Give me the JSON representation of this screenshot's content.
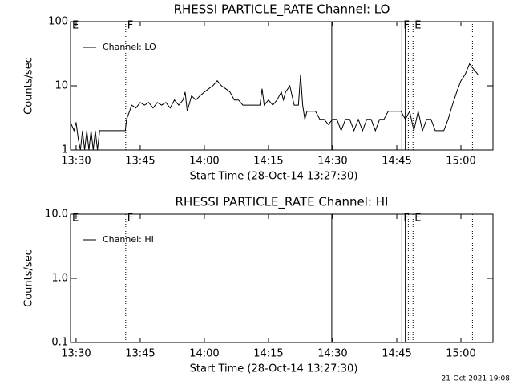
{
  "chart_data": [
    {
      "type": "line",
      "title": "RHESSI PARTICLE_RATE Channel: LO",
      "xlabel": "Start Time (28-Oct-14 13:27:30)",
      "ylabel": "Counts/sec",
      "log_y": true,
      "xlim": [
        28.7,
        127.5
      ],
      "ylim": [
        1,
        100
      ],
      "xticks": [
        {
          "value": 30,
          "label": "13:30"
        },
        {
          "value": 45,
          "label": "13:45"
        },
        {
          "value": 60,
          "label": "14:00"
        },
        {
          "value": 75,
          "label": "14:15"
        },
        {
          "value": 90,
          "label": "14:30"
        },
        {
          "value": 105,
          "label": "14:45"
        },
        {
          "value": 120,
          "label": "15:00"
        }
      ],
      "yticks": [
        1,
        10,
        100
      ],
      "x": [
        28.7,
        29.5,
        30,
        30.5,
        31,
        31.5,
        32,
        32.5,
        33,
        33.5,
        34,
        34.5,
        35,
        35.5,
        36,
        40,
        41.5,
        41.8,
        42.5,
        43,
        44,
        45,
        46,
        47,
        48,
        49,
        50,
        51,
        52,
        53,
        54,
        55,
        55.5,
        56,
        57,
        58,
        59,
        60,
        61,
        62,
        63,
        64,
        65,
        66,
        67,
        68,
        69,
        70,
        71,
        72,
        73,
        73.5,
        74,
        75,
        76,
        77,
        78,
        78.5,
        79,
        80,
        81,
        82,
        82.5,
        83,
        83.5,
        84,
        85,
        86,
        87,
        88,
        89,
        90,
        91,
        92,
        93,
        94,
        95,
        96,
        97,
        98,
        99,
        100,
        101,
        102,
        103,
        104,
        105,
        106,
        107,
        108,
        109,
        110,
        111,
        112,
        113,
        114,
        115,
        116,
        117,
        118,
        119,
        120,
        121,
        122,
        123,
        124
      ],
      "series": [
        {
          "name": "Channel: LO",
          "color": "#000000",
          "values": [
            2.7,
            2,
            2.7,
            1.5,
            1,
            2,
            1,
            2,
            1,
            2,
            1,
            2,
            1,
            2,
            2,
            2,
            2,
            3,
            4,
            5,
            4.5,
            5.5,
            5,
            5.5,
            4.5,
            5.5,
            5,
            5.5,
            4.5,
            6,
            5,
            6,
            8,
            4,
            7,
            6,
            7,
            8,
            9,
            10,
            12,
            10,
            9,
            8,
            6,
            6,
            5,
            5,
            5,
            5,
            5,
            9,
            5,
            6,
            5,
            6,
            8,
            6,
            8,
            10,
            5,
            5,
            15,
            5,
            3,
            4,
            4,
            4,
            3,
            3,
            2.5,
            3,
            3,
            2,
            3,
            3,
            2,
            3,
            2,
            3,
            3,
            2,
            3,
            3,
            4,
            4,
            4,
            4,
            3,
            4,
            2,
            4,
            2,
            3,
            3,
            2,
            2,
            2,
            3,
            5,
            8,
            12,
            15,
            22,
            18,
            15
          ]
        }
      ],
      "vlines": [
        {
          "x": 41.6,
          "style": "dotted"
        },
        {
          "x": 89.8,
          "style": "solid"
        },
        {
          "x": 106.2,
          "style": "solid"
        },
        {
          "x": 107,
          "style": "solid"
        },
        {
          "x": 107.7,
          "style": "dotted"
        },
        {
          "x": 108.8,
          "style": "dotted"
        },
        {
          "x": 122.7,
          "style": "dotted"
        }
      ],
      "flags": [
        {
          "x": 28.7,
          "label": "E"
        },
        {
          "x": 41.6,
          "label": "F"
        },
        {
          "x": 106.2,
          "label": "F"
        },
        {
          "x": 108.8,
          "label": "E"
        }
      ]
    },
    {
      "type": "line",
      "title": "RHESSI PARTICLE_RATE Channel: HI",
      "xlabel": "Start Time (28-Oct-14 13:27:30)",
      "ylabel": "Counts/sec",
      "log_y": true,
      "xlim": [
        28.7,
        127.5
      ],
      "ylim": [
        0.1,
        10
      ],
      "xticks": [
        {
          "value": 30,
          "label": "13:30"
        },
        {
          "value": 45,
          "label": "13:45"
        },
        {
          "value": 60,
          "label": "14:00"
        },
        {
          "value": 75,
          "label": "14:15"
        },
        {
          "value": 90,
          "label": "14:30"
        },
        {
          "value": 105,
          "label": "14:45"
        },
        {
          "value": 120,
          "label": "15:00"
        }
      ],
      "yticks": [
        0.1,
        {
          "value": 1,
          "label": "1.0"
        },
        {
          "value": 10,
          "label": "10.0"
        }
      ],
      "x": [],
      "series": [
        {
          "name": "Channel: HI",
          "color": "#000000",
          "values": []
        }
      ],
      "vlines": [
        {
          "x": 41.6,
          "style": "dotted"
        },
        {
          "x": 89.8,
          "style": "solid"
        },
        {
          "x": 106.2,
          "style": "solid"
        },
        {
          "x": 107,
          "style": "solid"
        },
        {
          "x": 107.7,
          "style": "dotted"
        },
        {
          "x": 108.8,
          "style": "dotted"
        },
        {
          "x": 122.7,
          "style": "dotted"
        }
      ],
      "flags": [
        {
          "x": 28.7,
          "label": "E"
        },
        {
          "x": 41.6,
          "label": "F"
        },
        {
          "x": 106.2,
          "label": "F"
        },
        {
          "x": 108.8,
          "label": "E"
        }
      ]
    }
  ],
  "footer": "21-Oct-2021 19:08"
}
